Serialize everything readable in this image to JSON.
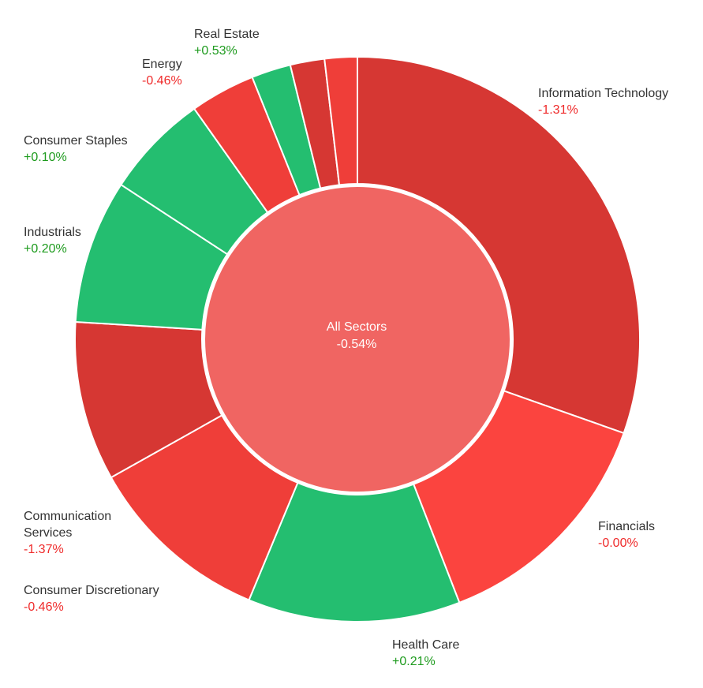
{
  "colors": {
    "green": "#24be70",
    "red_dark": "#d63733",
    "red": "#ef3e39",
    "red_bright": "#fb443f",
    "center": "#f06562",
    "pos_text": "#1e9b1e",
    "neg_text": "#ef2b2b"
  },
  "chart_data": {
    "type": "pie",
    "subtype": "donut",
    "center": {
      "name": "All Sectors",
      "change": "-0.54%"
    },
    "slices": [
      {
        "name": "Information Technology",
        "change": "-1.31%",
        "weight": 31.0,
        "color": "#d63733"
      },
      {
        "name": "Financials",
        "change": "-0.00%",
        "weight": 14.0,
        "color": "#fb443f"
      },
      {
        "name": "Health Care",
        "change": "+0.21%",
        "weight": 12.4,
        "color": "#24be70"
      },
      {
        "name": "Consumer Discretionary",
        "change": "-0.46%",
        "weight": 10.8,
        "color": "#ef3e39"
      },
      {
        "name": "Communication Services",
        "change": "-1.37%",
        "weight": 9.3,
        "color": "#d63733"
      },
      {
        "name": "Industrials",
        "change": "+0.20%",
        "weight": 8.4,
        "color": "#24be70"
      },
      {
        "name": "Consumer Staples",
        "change": "+0.10%",
        "weight": 6.1,
        "color": "#24be70"
      },
      {
        "name": "Energy",
        "change": "-0.46%",
        "weight": 3.8,
        "color": "#ef3e39"
      },
      {
        "name": "Real Estate",
        "change": "+0.53%",
        "weight": 2.3,
        "color": "#24be70"
      },
      {
        "name": "",
        "change": "",
        "weight": 2.0,
        "color": "#d63733"
      },
      {
        "name": "",
        "change": "",
        "weight": 1.9,
        "color": "#ef3e39"
      }
    ]
  }
}
